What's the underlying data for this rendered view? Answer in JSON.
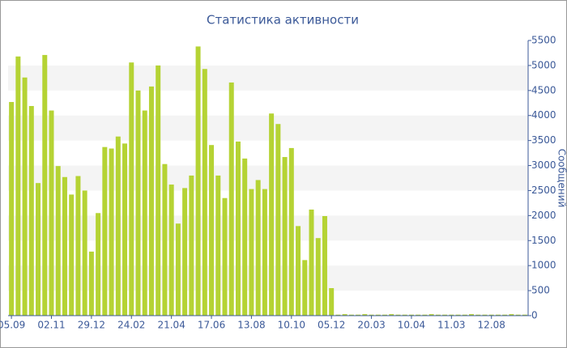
{
  "chart_data": {
    "type": "bar",
    "title": "Статистика активности",
    "y_label": "Сообщений",
    "categories": [
      "05.09",
      null,
      null,
      null,
      null,
      null,
      "02.11",
      null,
      null,
      null,
      null,
      null,
      "29.12",
      null,
      null,
      null,
      null,
      null,
      "24.02",
      null,
      null,
      null,
      null,
      null,
      "21.04",
      null,
      null,
      null,
      null,
      null,
      "17.06",
      null,
      null,
      null,
      null,
      null,
      "13.08",
      null,
      null,
      null,
      null,
      null,
      "10.10",
      null,
      null,
      null,
      null,
      null,
      "05.12",
      null,
      null,
      null,
      null,
      null,
      "20.03",
      null,
      null,
      null,
      null,
      null,
      "10.04",
      null,
      null,
      null,
      null,
      null,
      "11.03",
      null,
      null,
      null,
      null,
      null,
      "12.08",
      null,
      null,
      null,
      null,
      null
    ],
    "values": [
      4270,
      5180,
      4760,
      4190,
      2650,
      5210,
      4100,
      2990,
      2770,
      2420,
      2790,
      2500,
      1280,
      2050,
      3370,
      3340,
      3580,
      3440,
      5060,
      4500,
      4100,
      4580,
      5000,
      3030,
      2620,
      1840,
      2550,
      2800,
      5380,
      4930,
      3410,
      2800,
      2350,
      4660,
      3480,
      3140,
      2530,
      2710,
      2530,
      4040,
      3830,
      3170,
      3350,
      1790,
      1110,
      2120,
      1550,
      1990,
      550,
      20,
      30,
      20,
      20,
      30,
      20,
      20,
      20,
      30,
      20,
      20,
      20,
      20,
      20,
      30,
      20,
      20,
      20,
      20,
      20,
      30,
      20,
      20,
      20,
      20,
      20,
      30,
      20,
      20
    ],
    "color": "#b5d334",
    "ylim": [
      0,
      5500
    ],
    "yticks": [
      0,
      500,
      1000,
      1500,
      2000,
      2500,
      3000,
      3500,
      4000,
      4500,
      5000,
      5500
    ],
    "grid": true
  }
}
